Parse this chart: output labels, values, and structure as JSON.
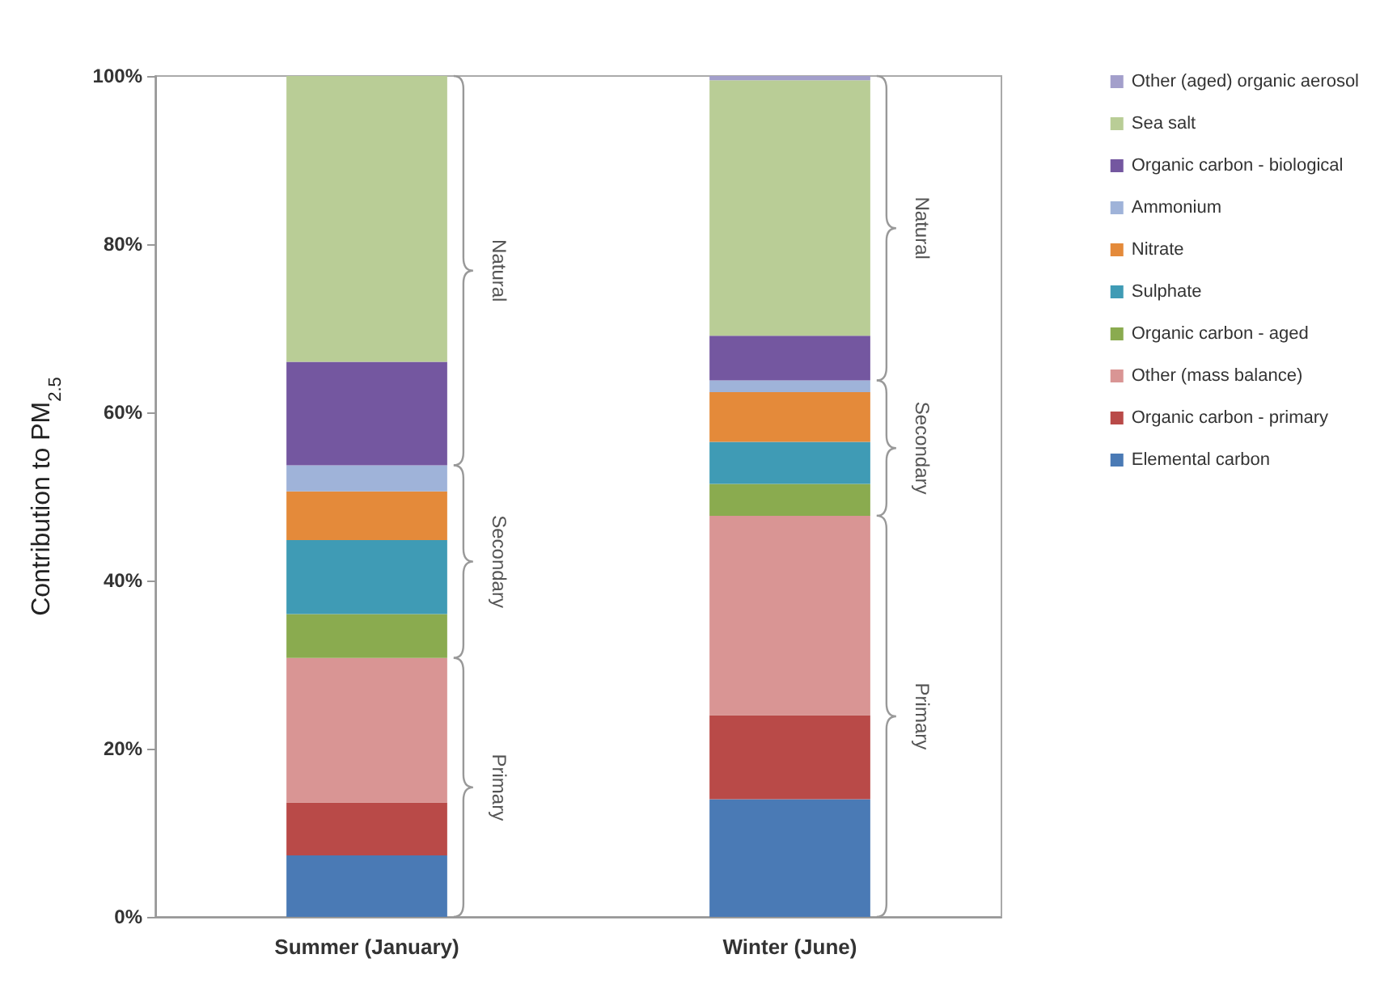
{
  "chart_data": {
    "type": "bar",
    "stacked": true,
    "ylabel": "Contribution to PM$_{2.5}$",
    "categories": [
      "Summer (January)",
      "Winter (June)"
    ],
    "ylim": [
      0,
      100
    ],
    "yticks": [
      {
        "value": 0,
        "label": "0%"
      },
      {
        "value": 20,
        "label": "20%"
      },
      {
        "value": 40,
        "label": "40%"
      },
      {
        "value": 60,
        "label": "60%"
      },
      {
        "value": 80,
        "label": "80%"
      },
      {
        "value": 100,
        "label": "100%"
      }
    ],
    "grid": false,
    "legend": "right",
    "series": [
      {
        "name": "Elemental carbon",
        "color": "#4a7ab5",
        "values": [
          7.3,
          14
        ]
      },
      {
        "name": "Organic carbon - primary",
        "color": "#b94a48",
        "values": [
          6.3,
          10
        ]
      },
      {
        "name": "Other (mass balance)",
        "color": "#d99594",
        "values": [
          17.2,
          23.7
        ]
      },
      {
        "name": "Organic carbon - aged",
        "color": "#8aab4f",
        "values": [
          5.2,
          3.8
        ]
      },
      {
        "name": "Sulphate",
        "color": "#3f9bb5",
        "values": [
          8.8,
          5
        ]
      },
      {
        "name": "Nitrate",
        "color": "#e48a3a",
        "values": [
          5.8,
          5.9
        ]
      },
      {
        "name": "Ammonium",
        "color": "#9fb3d9",
        "values": [
          3.1,
          1.4
        ]
      },
      {
        "name": "Organic carbon - biological",
        "color": "#7457a0",
        "values": [
          12.3,
          5.3
        ]
      },
      {
        "name": "Sea salt",
        "color": "#b9cd96",
        "values": [
          34,
          30.4
        ]
      },
      {
        "name": "Other (aged) organic aerosol",
        "color": "#a39fcb",
        "values": [
          0,
          0.5
        ]
      }
    ],
    "annotations": [
      "Primary",
      "Secondary",
      "Natural",
      "Primary",
      "Secondary",
      "Natural"
    ]
  }
}
